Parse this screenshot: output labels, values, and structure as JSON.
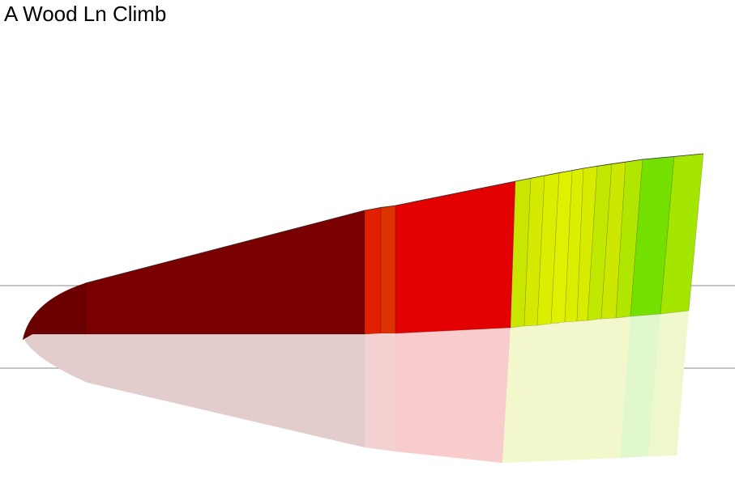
{
  "title": "A Wood Ln Climb"
}
